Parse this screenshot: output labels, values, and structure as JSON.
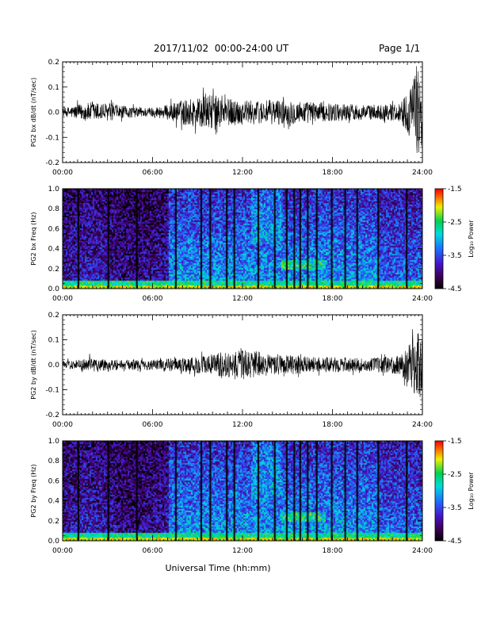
{
  "header": {
    "title": "2017/11/02  00:00-24:00 UT",
    "page_label": "Page 1/1"
  },
  "xlabel": "Universal Time (hh:mm)",
  "colorbar": {
    "label": "Log₁₀ Power",
    "ticks": [
      "-1.5",
      "-2.5",
      "-3.5",
      "-4.5"
    ]
  },
  "chart_data": [
    {
      "type": "line",
      "title": "",
      "xlabel": "",
      "ylabel": "PG2 bx dB/dt (nT/sec)",
      "xlim": [
        0,
        24
      ],
      "ylim": [
        -0.2,
        0.2
      ],
      "xtick_labels": [
        "00:00",
        "06:00",
        "12:00",
        "18:00",
        "24:00"
      ],
      "ytick_labels": [
        "0.2",
        "0.1",
        "0.0",
        "-0.1",
        "-0.2"
      ],
      "series": [
        {
          "x_hours": [
            0,
            1,
            2,
            3,
            4,
            5,
            6,
            7,
            8,
            9,
            10,
            11,
            12,
            13,
            14,
            15,
            16,
            17,
            18,
            19,
            20,
            21,
            22,
            22.5,
            23,
            23.5,
            24
          ],
          "envelope": [
            0.015,
            0.03,
            0.04,
            0.035,
            0.025,
            0.02,
            0.02,
            0.03,
            0.05,
            0.06,
            0.07,
            0.055,
            0.05,
            0.045,
            0.05,
            0.05,
            0.045,
            0.04,
            0.035,
            0.035,
            0.03,
            0.03,
            0.035,
            0.04,
            0.08,
            0.15,
            0.2
          ]
        }
      ]
    },
    {
      "type": "heatmap",
      "title": "",
      "xlabel": "",
      "ylabel": "PG2 bx Freq (Hz)",
      "xlim": [
        0,
        24
      ],
      "ylim": [
        0,
        1.0
      ],
      "clim": [
        -4.5,
        -1.5
      ],
      "colorbar_label": "Log₁₀ Power",
      "colorbar_ticks": [
        "-1.5",
        "-2.5",
        "-3.5",
        "-4.5"
      ],
      "xtick_labels": [
        "00:00",
        "06:00",
        "12:00",
        "18:00",
        "24:00"
      ],
      "ytick_labels": [
        "1.0",
        "0.8",
        "0.6",
        "0.4",
        "0.2",
        "0.0"
      ],
      "data_gaps_hours": [
        1.0,
        3.0,
        4.9,
        7.5,
        9.2,
        9.8,
        10.9,
        11.4,
        13.0,
        14.1,
        14.9,
        15.4,
        15.8,
        16.3,
        16.9,
        17.9,
        18.8,
        19.6,
        21.0,
        22.9
      ],
      "notes": "Low-frequency band (<0.05 Hz) high power; broadband enhancement after ~07:00 UT; band near 0.25 Hz around 15-16 UT"
    },
    {
      "type": "line",
      "title": "",
      "xlabel": "",
      "ylabel": "PG2 by dB/dt (nT/sec)",
      "xlim": [
        0,
        24
      ],
      "ylim": [
        -0.2,
        0.2
      ],
      "xtick_labels": [
        "00:00",
        "06:00",
        "12:00",
        "18:00",
        "24:00"
      ],
      "ytick_labels": [
        "0.2",
        "0.1",
        "0.0",
        "-0.1",
        "-0.2"
      ],
      "series": [
        {
          "x_hours": [
            0,
            1,
            2,
            3,
            4,
            5,
            6,
            7,
            8,
            9,
            10,
            11,
            12,
            13,
            14,
            15,
            16,
            17,
            18,
            19,
            20,
            21,
            22,
            22.5,
            23,
            23.5,
            24
          ],
          "envelope": [
            0.015,
            0.02,
            0.03,
            0.025,
            0.02,
            0.02,
            0.02,
            0.025,
            0.03,
            0.035,
            0.045,
            0.05,
            0.06,
            0.055,
            0.04,
            0.04,
            0.035,
            0.03,
            0.03,
            0.03,
            0.025,
            0.03,
            0.035,
            0.04,
            0.07,
            0.12,
            0.16
          ]
        }
      ]
    },
    {
      "type": "heatmap",
      "title": "",
      "xlabel": "",
      "ylabel": "PG2 by Freq (Hz)",
      "xlim": [
        0,
        24
      ],
      "ylim": [
        0,
        1.0
      ],
      "clim": [
        -4.5,
        -1.5
      ],
      "colorbar_label": "Log₁₀ Power",
      "colorbar_ticks": [
        "-1.5",
        "-2.5",
        "-3.5",
        "-4.5"
      ],
      "xtick_labels": [
        "00:00",
        "06:00",
        "12:00",
        "18:00",
        "24:00"
      ],
      "ytick_labels": [
        "1.0",
        "0.8",
        "0.6",
        "0.4",
        "0.2",
        "0.0"
      ],
      "data_gaps_hours": [
        1.0,
        3.0,
        4.9,
        7.5,
        9.2,
        9.8,
        10.9,
        11.4,
        13.0,
        14.1,
        14.9,
        15.4,
        15.8,
        16.3,
        16.9,
        17.9,
        18.8,
        19.6,
        21.0,
        22.9
      ],
      "notes": "Low-frequency band high power; broadband enhancement after ~07:00 UT"
    }
  ]
}
